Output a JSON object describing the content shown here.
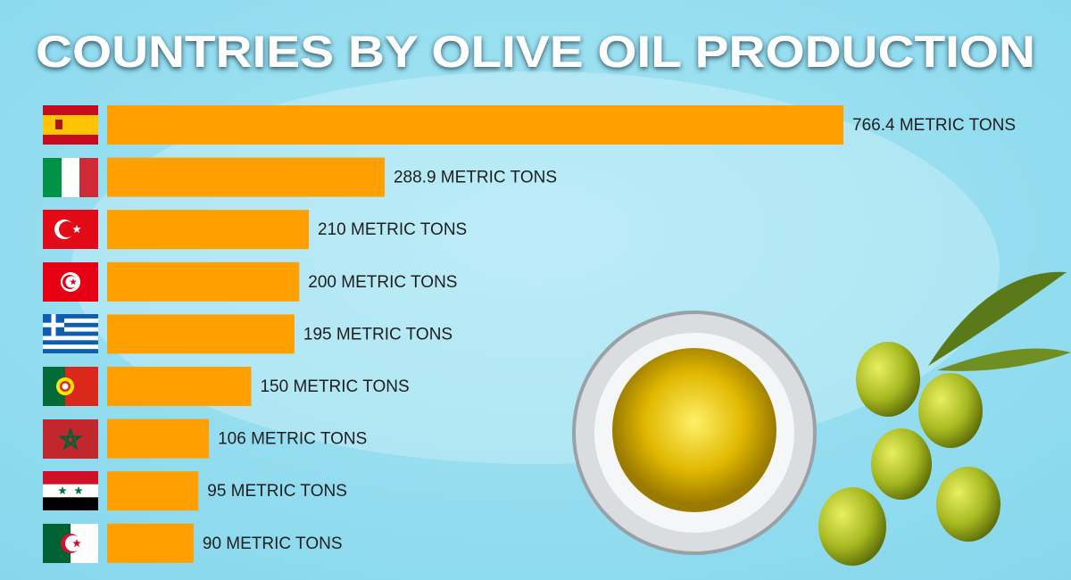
{
  "chart_data": {
    "type": "bar",
    "orientation": "horizontal",
    "title": "COUNTRIES BY OLIVE OIL PRODUCTION",
    "categories": [
      null,
      null,
      null,
      null,
      null,
      null,
      null,
      null,
      null
    ],
    "values": [
      766.4,
      288.9,
      210,
      200,
      195,
      150,
      106,
      95,
      90
    ],
    "value_labels": [
      "766.4 METRIC TONS",
      "288.9 METRIC TONS",
      "210 METRIC TONS",
      "200 METRIC TONS",
      "195 METRIC TONS",
      "150 METRIC TONS",
      "106 METRIC TONS",
      "95 METRIC TONS",
      "90 METRIC TONS"
    ],
    "color": "#ff9f00"
  }
}
